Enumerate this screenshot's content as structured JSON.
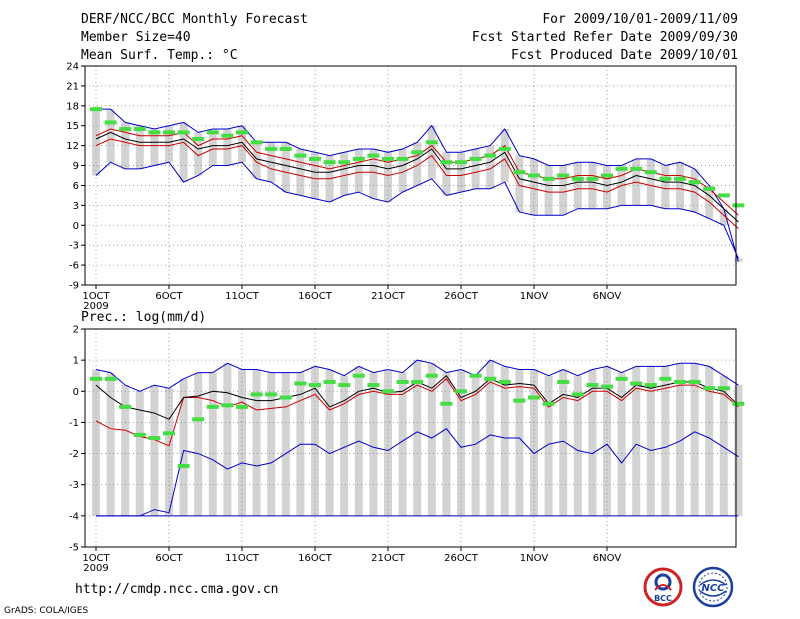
{
  "header": {
    "title": "DERF/NCC/BCC Monthly Forecast",
    "member_size": "Member Size=40",
    "variable": "Mean Surf. Temp.: °C",
    "period": "For 2009/10/01-2009/11/09",
    "start_date": "Fcst Started Refer Date 2009/09/30",
    "produced_date": "Fcst Produced Date 2009/10/01"
  },
  "footer": {
    "url": "http://cmdp.ncc.cma.gov.cn",
    "credit": "GrADS: COLA/IGES",
    "logo_bcc": "BCC",
    "logo_ncc": "NCC"
  },
  "colors": {
    "box": "#d3d3d3",
    "grid": "#888888",
    "envelope": "#0000cc",
    "ensemble_mean": "#000000",
    "lower_line": "#cc0000",
    "marker": "#44dd44"
  },
  "chart_data": [
    {
      "type": "box",
      "title": "Mean Surf. Temp.: °C",
      "x_labels": [
        "1OCT",
        "6OCT",
        "11OCT",
        "16OCT",
        "21OCT",
        "26OCT",
        "1NOV",
        "6NOV"
      ],
      "x_year_label": "2009",
      "ylim": [
        -9,
        24
      ],
      "yticks": [
        -9,
        -6,
        -3,
        0,
        3,
        6,
        9,
        12,
        15,
        18,
        21,
        24
      ],
      "series": [
        {
          "name": "max",
          "values": [
            17.5,
            17.5,
            15.5,
            15,
            14.5,
            15,
            15.5,
            14,
            14.5,
            14.5,
            15,
            12.5,
            12.5,
            12.5,
            11.5,
            11,
            10.5,
            11,
            11.5,
            11.5,
            11,
            11.5,
            12.5,
            15,
            11,
            11,
            11.5,
            12,
            14.5,
            10.5,
            10,
            9,
            9,
            9.5,
            9.5,
            9,
            9,
            10,
            10,
            9,
            9.5,
            8.5,
            6,
            2.5,
            -5.5
          ]
        },
        {
          "name": "upper",
          "values": [
            13.5,
            14.5,
            14,
            13.5,
            13.5,
            13.5,
            14,
            12,
            13,
            13,
            13.5,
            11,
            10.5,
            10,
            9.5,
            9,
            8.5,
            9,
            9.5,
            10,
            9.5,
            10,
            10.5,
            12,
            9.5,
            9.5,
            10,
            10.5,
            12,
            8,
            7.5,
            7,
            7,
            7.5,
            7.5,
            7,
            7.5,
            8.5,
            8,
            7.5,
            7.5,
            7,
            5.5,
            3.5,
            1.5
          ]
        },
        {
          "name": "mean",
          "values": [
            13,
            14,
            13,
            12.5,
            12.5,
            12.5,
            13,
            11.5,
            12,
            12,
            12.5,
            10,
            9.5,
            9,
            8.5,
            8,
            8,
            8.5,
            9,
            9,
            8.5,
            9,
            10,
            11.5,
            8.5,
            8.5,
            9,
            9.5,
            11,
            7,
            6.5,
            6,
            6,
            6.5,
            6.5,
            6,
            6.5,
            7.5,
            7,
            6.5,
            6.5,
            6,
            4.5,
            2.5,
            0.5
          ]
        },
        {
          "name": "lower",
          "values": [
            12,
            13,
            12.5,
            12,
            12,
            12,
            12.5,
            10.5,
            11.5,
            11.5,
            12,
            9.5,
            8.5,
            8,
            7.5,
            7,
            7,
            7.5,
            8,
            8,
            7.5,
            8,
            9,
            10.5,
            7.5,
            7.5,
            8,
            8.5,
            10,
            6,
            5.5,
            5,
            5,
            5.5,
            5.5,
            5,
            6,
            6.5,
            6,
            5.5,
            5.5,
            5,
            3.5,
            1.5,
            -0.5
          ]
        },
        {
          "name": "min",
          "values": [
            7.5,
            9.5,
            8.5,
            8.5,
            9,
            9.5,
            6.5,
            7.5,
            9,
            9,
            9.5,
            7,
            6.5,
            5,
            4.5,
            4,
            3.5,
            4.5,
            5,
            4,
            3.5,
            5,
            6,
            7,
            4.5,
            5,
            5.5,
            5.5,
            6.5,
            2,
            1.5,
            1.5,
            1.5,
            2.5,
            2.5,
            2.5,
            3,
            3,
            3,
            2.5,
            2.5,
            2,
            1,
            0,
            -5
          ]
        },
        {
          "name": "markers",
          "values": [
            17.5,
            15.5,
            14.5,
            14.5,
            14,
            14,
            14,
            13,
            14,
            13.5,
            14,
            12.5,
            11.5,
            11.5,
            10.5,
            10,
            9.5,
            9.5,
            10,
            10.5,
            10,
            10,
            11,
            12.5,
            9.5,
            9.5,
            10,
            10.5,
            11.5,
            8,
            7.5,
            7,
            7.5,
            7,
            7,
            7.5,
            8.5,
            8.5,
            8,
            7,
            7,
            6.5,
            5.5,
            4.5,
            3
          ]
        }
      ]
    },
    {
      "type": "box",
      "title": "Prec.: log(mm/d)",
      "x_labels": [
        "1OCT",
        "6OCT",
        "11OCT",
        "16OCT",
        "21OCT",
        "26OCT",
        "1NOV",
        "6NOV"
      ],
      "x_year_label": "2009",
      "ylim": [
        -5,
        2
      ],
      "yticks": [
        -5,
        -4,
        -3,
        -2,
        -1,
        0,
        1,
        2
      ],
      "series": [
        {
          "name": "max",
          "values": [
            0.7,
            0.6,
            0.2,
            0,
            0.2,
            0.1,
            0.4,
            0.6,
            0.6,
            0.9,
            0.7,
            0.7,
            0.6,
            0.6,
            0.6,
            0.8,
            0.7,
            0.5,
            0.8,
            0.6,
            0.7,
            0.6,
            1,
            0.9,
            0.6,
            0.7,
            0.5,
            1,
            0.8,
            0.7,
            0.7,
            0.5,
            0.7,
            0.5,
            0.7,
            0.8,
            0.6,
            0.8,
            0.8,
            0.8,
            0.9,
            0.9,
            0.8,
            0.5,
            0.2
          ]
        },
        {
          "name": "mean",
          "values": [
            0.2,
            -0.2,
            -0.5,
            -0.6,
            -0.7,
            -0.9,
            -0.2,
            -0.15,
            0,
            -0.05,
            -0.2,
            -0.3,
            -0.3,
            -0.2,
            -0.1,
            0.1,
            -0.5,
            -0.3,
            0,
            0.1,
            -0.05,
            0,
            0.3,
            0.1,
            0.5,
            -0.2,
            0,
            0.4,
            0.2,
            0.25,
            0.2,
            -0.4,
            -0.1,
            -0.2,
            0.1,
            0.1,
            -0.2,
            0.2,
            0.1,
            0.2,
            0.3,
            0.3,
            0.1,
            0,
            -0.45
          ]
        },
        {
          "name": "lower",
          "values": [
            -0.95,
            -1.2,
            -1.25,
            -1.45,
            -1.55,
            -1.75,
            -0.2,
            -0.2,
            -0.3,
            -0.5,
            -0.35,
            -0.6,
            -0.55,
            -0.5,
            -0.3,
            -0.1,
            -0.6,
            -0.4,
            -0.1,
            0,
            -0.1,
            -0.1,
            0.2,
            0,
            0.4,
            -0.3,
            -0.1,
            0.3,
            0.1,
            0.15,
            0.1,
            -0.5,
            -0.2,
            -0.3,
            0,
            0,
            -0.3,
            0.1,
            0,
            0.1,
            0.2,
            0.2,
            0,
            -0.1,
            -0.5
          ]
        },
        {
          "name": "min",
          "values": [
            -4,
            -4,
            -4,
            -4,
            -3.8,
            -3.9,
            -1.9,
            -2,
            -2.2,
            -2.5,
            -2.3,
            -2.4,
            -2.3,
            -2,
            -1.7,
            -1.7,
            -2,
            -1.8,
            -1.6,
            -1.8,
            -1.9,
            -1.6,
            -1.3,
            -1.5,
            -1.2,
            -1.8,
            -1.7,
            -1.4,
            -1.5,
            -1.5,
            -2,
            -1.7,
            -1.6,
            -1.9,
            -2,
            -1.7,
            -2.3,
            -1.7,
            -1.9,
            -1.8,
            -1.6,
            -1.3,
            -1.5,
            -1.8,
            -2.1
          ]
        },
        {
          "name": "markers",
          "values": [
            0.4,
            0.4,
            -0.5,
            -1.4,
            -1.5,
            -1.35,
            -2.4,
            -0.9,
            -0.5,
            -0.45,
            -0.5,
            -0.1,
            -0.1,
            -0.2,
            0.25,
            0.2,
            0.3,
            0.2,
            0.5,
            0.2,
            0,
            0.3,
            0.3,
            0.5,
            -0.4,
            0,
            0.5,
            0.4,
            0.3,
            -0.3,
            -0.2,
            -0.4,
            0.3,
            -0.1,
            0.2,
            0.15,
            0.4,
            0.25,
            0.2,
            0.4,
            0.3,
            0.3,
            0.1,
            0.1,
            -0.4
          ]
        },
        {
          "name": "floor",
          "values": [
            -4,
            -4,
            -4,
            -4,
            -4,
            -4,
            -4,
            -4,
            -4,
            -4,
            -4,
            -4,
            -4,
            -4,
            -4,
            -4,
            -4,
            -4,
            -4,
            -4,
            -4,
            -4,
            -4,
            -4,
            -4,
            -4,
            -4,
            -4,
            -4,
            -4,
            -4,
            -4,
            -4,
            -4,
            -4,
            -4,
            -4,
            -4,
            -4,
            -4,
            -4,
            -4,
            -4,
            -4,
            -4
          ]
        }
      ]
    }
  ]
}
